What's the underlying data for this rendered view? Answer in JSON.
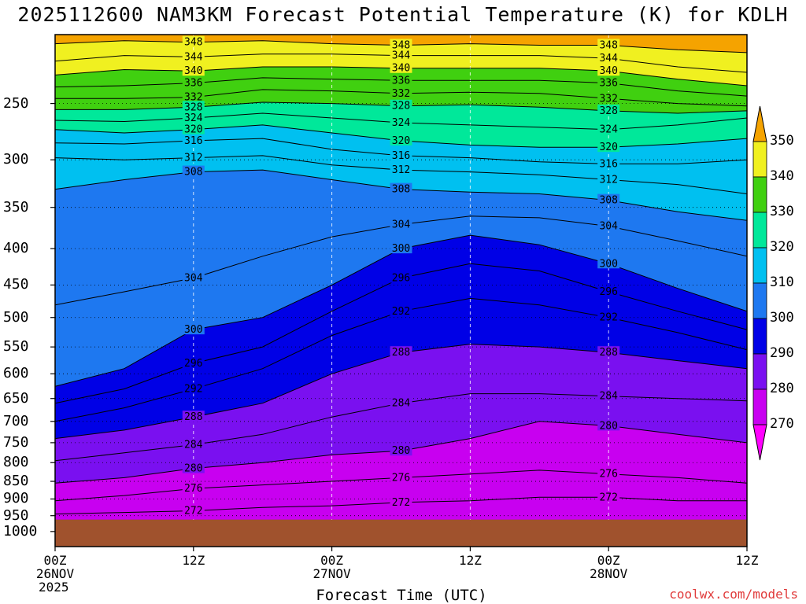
{
  "title": "2025112600 NAM3KM Forecast Potential Temperature (K) for KDLH",
  "footer": {
    "credit": "coolwx.com/models"
  },
  "chart_data": {
    "type": "heatmap",
    "title": "2025112600 NAM3KM Forecast Potential Temperature (K) for KDLH",
    "xlabel": "Forecast Time (UTC)",
    "ylabel": "",
    "x_ticks": [
      {
        "hours": 0,
        "line1": "00Z",
        "line2": "26NOV",
        "line3": "2025"
      },
      {
        "hours": 12,
        "line1": "12Z",
        "line2": "",
        "line3": ""
      },
      {
        "hours": 24,
        "line1": "00Z",
        "line2": "27NOV",
        "line3": ""
      },
      {
        "hours": 36,
        "line1": "12Z",
        "line2": "",
        "line3": ""
      },
      {
        "hours": 48,
        "line1": "00Z",
        "line2": "28NOV",
        "line3": ""
      },
      {
        "hours": 60,
        "line1": "12Z",
        "line2": "",
        "line3": ""
      }
    ],
    "xlim": [
      0,
      60
    ],
    "y_ticks": [
      250,
      300,
      350,
      400,
      450,
      500,
      550,
      600,
      650,
      700,
      750,
      800,
      850,
      900,
      950,
      1000
    ],
    "ylim": [
      200,
      1050
    ],
    "y_scale": "log (pressure, hPa), inverted",
    "colorbar": {
      "ticks": [
        350,
        340,
        330,
        320,
        310,
        300,
        290,
        280,
        270
      ],
      "colors": [
        "#f5a300",
        "#f0f020",
        "#40d010",
        "#00e89a",
        "#00c0f0",
        "#1e78f0",
        "#0000e6",
        "#7a10f0",
        "#c800f0",
        "#ff00ff"
      ],
      "extend": "both"
    },
    "contour_labels_K": [
      348,
      344,
      340,
      336,
      332,
      328,
      324,
      320,
      316,
      312,
      308,
      304,
      300,
      296,
      292,
      288,
      284,
      280,
      276,
      272
    ],
    "ground_color": "#a0522d",
    "surface_pressure_hPa": 962,
    "isentropes": [
      {
        "theta": 348,
        "pressure": [
          206,
          204,
          205,
          204,
          206,
          207,
          206,
          207,
          207,
          210,
          212
        ]
      },
      {
        "theta": 344,
        "pressure": [
          218,
          214,
          215,
          213,
          213,
          214,
          214,
          214,
          216,
          222,
          226
        ]
      },
      {
        "theta": 340,
        "pressure": [
          228,
          224,
          225,
          222,
          222,
          223,
          223,
          223,
          225,
          231,
          236
        ]
      },
      {
        "theta": 336,
        "pressure": [
          237,
          236,
          234,
          230,
          231,
          232,
          232,
          232,
          234,
          240,
          244
        ]
      },
      {
        "theta": 332,
        "pressure": [
          246,
          246,
          245,
          239,
          240,
          242,
          241,
          242,
          246,
          250,
          252
        ]
      },
      {
        "theta": 328,
        "pressure": [
          255,
          255,
          253,
          249,
          250,
          252,
          251,
          253,
          256,
          258,
          256
        ]
      },
      {
        "theta": 324,
        "pressure": [
          264,
          265,
          262,
          258,
          262,
          266,
          268,
          270,
          272,
          268,
          262
        ]
      },
      {
        "theta": 320,
        "pressure": [
          272,
          275,
          272,
          268,
          275,
          282,
          286,
          288,
          288,
          285,
          280
        ]
      },
      {
        "theta": 316,
        "pressure": [
          284,
          285,
          282,
          280,
          290,
          296,
          298,
          302,
          304,
          304,
          300
        ]
      },
      {
        "theta": 312,
        "pressure": [
          298,
          300,
          298,
          296,
          305,
          310,
          312,
          315,
          320,
          325,
          335
        ]
      },
      {
        "theta": 308,
        "pressure": [
          330,
          320,
          312,
          310,
          320,
          330,
          333,
          335,
          342,
          355,
          365
        ]
      },
      {
        "theta": 304,
        "pressure": [
          480,
          460,
          440,
          410,
          385,
          370,
          360,
          362,
          372,
          390,
          410
        ]
      },
      {
        "theta": 300,
        "pressure": [
          625,
          590,
          520,
          500,
          450,
          400,
          383,
          395,
          420,
          455,
          490
        ]
      },
      {
        "theta": 296,
        "pressure": [
          660,
          630,
          580,
          550,
          490,
          440,
          420,
          430,
          460,
          490,
          520
        ]
      },
      {
        "theta": 292,
        "pressure": [
          700,
          670,
          630,
          590,
          530,
          490,
          470,
          480,
          500,
          525,
          555
        ]
      },
      {
        "theta": 288,
        "pressure": [
          740,
          720,
          690,
          660,
          600,
          560,
          545,
          550,
          560,
          575,
          590
        ]
      },
      {
        "theta": 284,
        "pressure": [
          795,
          775,
          755,
          730,
          690,
          660,
          640,
          640,
          645,
          650,
          655
        ]
      },
      {
        "theta": 280,
        "pressure": [
          855,
          840,
          815,
          800,
          780,
          770,
          740,
          700,
          710,
          730,
          750
        ]
      },
      {
        "theta": 276,
        "pressure": [
          905,
          890,
          870,
          860,
          850,
          840,
          830,
          820,
          830,
          840,
          855
        ]
      },
      {
        "theta": 272,
        "pressure": [
          945,
          940,
          935,
          925,
          920,
          910,
          905,
          895,
          895,
          905,
          905
        ]
      }
    ]
  }
}
